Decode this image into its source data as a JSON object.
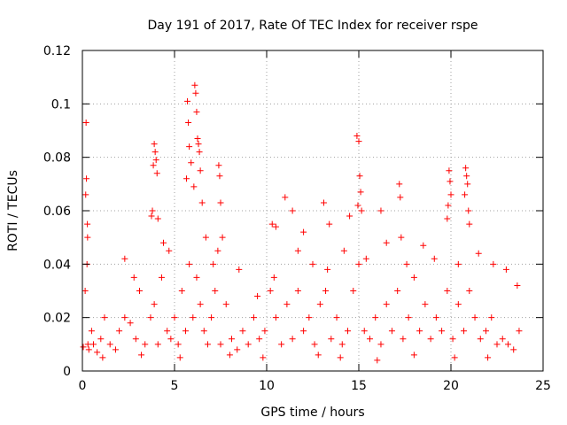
{
  "chart_data": {
    "type": "scatter",
    "title": "Day 191 of 2017, Rate Of TEC Index for receiver rspe",
    "xlabel": "GPS time / hours",
    "ylabel": "ROTI / TECUs",
    "xlim": [
      0,
      25
    ],
    "ylim": [
      0,
      0.12
    ],
    "x_ticks": [
      0,
      5,
      10,
      15,
      20,
      25
    ],
    "x_tick_labels": [
      "0",
      "5",
      "10",
      "15",
      "20",
      "25"
    ],
    "y_ticks": [
      0,
      0.02,
      0.04,
      0.06,
      0.08,
      0.1,
      0.12
    ],
    "y_tick_labels": [
      "0",
      "0.02",
      "0.04",
      "0.06",
      "0.08",
      "0.1",
      "0.12"
    ],
    "grid": true,
    "marker": "plus",
    "color": "#ff0000",
    "series": [
      {
        "name": "ROTI",
        "x": [
          0.05,
          0.15,
          0.25,
          0.3,
          0.35,
          0.5,
          0.6,
          0.8,
          1.0,
          1.2,
          1.5,
          1.8,
          2.0,
          2.3,
          2.6,
          2.9,
          3.1,
          3.4,
          3.7,
          3.9,
          4.1,
          4.3,
          4.6,
          4.8,
          5.0,
          5.2,
          5.4,
          5.6,
          5.8,
          6.0,
          6.2,
          6.4,
          6.6,
          6.8,
          7.0,
          7.2,
          7.5,
          7.8,
          8.1,
          8.4,
          8.7,
          9.0,
          9.3,
          9.6,
          9.9,
          10.2,
          10.5,
          10.8,
          11.1,
          11.4,
          11.7,
          12.0,
          12.3,
          12.6,
          12.9,
          13.2,
          13.5,
          13.8,
          14.1,
          14.4,
          14.7,
          15.0,
          15.3,
          15.6,
          15.9,
          16.2,
          16.5,
          16.8,
          17.1,
          17.4,
          17.7,
          18.0,
          18.3,
          18.6,
          18.9,
          19.2,
          19.5,
          19.8,
          20.1,
          20.4,
          20.7,
          21.0,
          21.3,
          21.6,
          21.9,
          22.2,
          22.5,
          22.8,
          23.1,
          23.4,
          23.7,
          0.2,
          0.22,
          0.18,
          0.28,
          0.27,
          3.9,
          3.95,
          4.0,
          3.85,
          4.05,
          3.8,
          3.75,
          4.1,
          5.7,
          5.75,
          5.8,
          5.9,
          5.65,
          6.1,
          6.15,
          6.2,
          6.25,
          6.3,
          6.35,
          6.4,
          6.05,
          6.5,
          7.4,
          7.45,
          7.5,
          7.6,
          7.35,
          10.3,
          10.5,
          11.0,
          11.4,
          12.0,
          13.1,
          13.4,
          14.5,
          14.9,
          15.0,
          15.05,
          15.1,
          14.95,
          15.15,
          16.2,
          17.2,
          17.25,
          17.3,
          19.9,
          19.95,
          20.0,
          19.85,
          19.8,
          20.8,
          20.85,
          20.9,
          20.75,
          20.95,
          21.0,
          2.3,
          2.8,
          4.4,
          4.7,
          6.7,
          7.1,
          8.5,
          9.5,
          10.4,
          11.7,
          12.5,
          13.3,
          14.2,
          15.4,
          16.5,
          17.6,
          18.5,
          19.1,
          20.4,
          21.5,
          22.3,
          23.0,
          23.6,
          1.1,
          3.2,
          5.3,
          8.0,
          9.8,
          12.8,
          14.0,
          16.0,
          18.0,
          20.2,
          22.0
        ],
        "y": [
          0.009,
          0.03,
          0.04,
          0.01,
          0.008,
          0.015,
          0.01,
          0.007,
          0.012,
          0.02,
          0.01,
          0.008,
          0.015,
          0.02,
          0.018,
          0.012,
          0.03,
          0.01,
          0.02,
          0.025,
          0.01,
          0.035,
          0.015,
          0.012,
          0.02,
          0.01,
          0.03,
          0.015,
          0.04,
          0.02,
          0.035,
          0.025,
          0.015,
          0.01,
          0.02,
          0.03,
          0.01,
          0.025,
          0.012,
          0.008,
          0.015,
          0.01,
          0.02,
          0.012,
          0.015,
          0.03,
          0.02,
          0.01,
          0.025,
          0.012,
          0.03,
          0.015,
          0.02,
          0.01,
          0.025,
          0.03,
          0.012,
          0.02,
          0.01,
          0.015,
          0.03,
          0.04,
          0.015,
          0.012,
          0.02,
          0.01,
          0.025,
          0.015,
          0.03,
          0.012,
          0.02,
          0.035,
          0.015,
          0.025,
          0.012,
          0.02,
          0.015,
          0.03,
          0.012,
          0.025,
          0.015,
          0.03,
          0.02,
          0.012,
          0.015,
          0.02,
          0.01,
          0.012,
          0.01,
          0.008,
          0.015,
          0.093,
          0.072,
          0.066,
          0.05,
          0.055,
          0.085,
          0.082,
          0.079,
          0.077,
          0.074,
          0.06,
          0.058,
          0.057,
          0.101,
          0.093,
          0.084,
          0.078,
          0.072,
          0.107,
          0.104,
          0.097,
          0.087,
          0.085,
          0.082,
          0.075,
          0.069,
          0.063,
          0.077,
          0.073,
          0.063,
          0.05,
          0.045,
          0.055,
          0.054,
          0.065,
          0.06,
          0.052,
          0.063,
          0.055,
          0.058,
          0.088,
          0.086,
          0.073,
          0.067,
          0.062,
          0.06,
          0.06,
          0.07,
          0.065,
          0.05,
          0.075,
          0.071,
          0.066,
          0.062,
          0.057,
          0.076,
          0.073,
          0.07,
          0.066,
          0.06,
          0.055,
          0.042,
          0.035,
          0.048,
          0.045,
          0.05,
          0.04,
          0.038,
          0.028,
          0.035,
          0.045,
          0.04,
          0.038,
          0.045,
          0.042,
          0.048,
          0.04,
          0.047,
          0.042,
          0.04,
          0.044,
          0.04,
          0.038,
          0.032,
          0.005,
          0.006,
          0.005,
          0.006,
          0.005,
          0.006,
          0.005,
          0.004,
          0.006,
          0.005,
          0.005
        ]
      }
    ]
  }
}
